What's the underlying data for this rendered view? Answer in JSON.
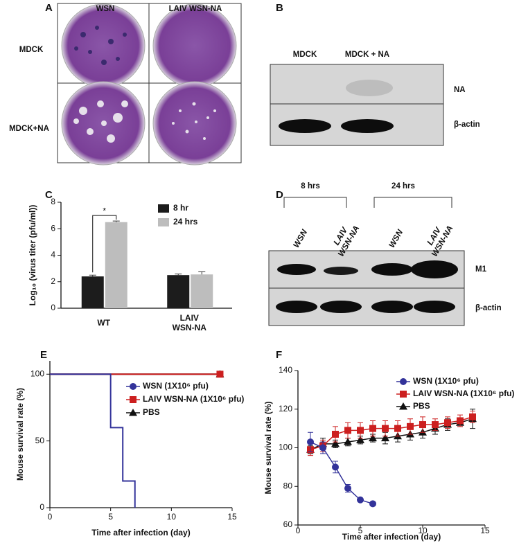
{
  "panel_labels": [
    "A",
    "B",
    "C",
    "D",
    "E",
    "F"
  ],
  "panel_a": {
    "columns": [
      "WSN",
      "LAIV WSN-NA"
    ],
    "rows": [
      "MDCK",
      "MDCK+NA"
    ]
  },
  "panel_b": {
    "lanes": [
      "MDCK",
      "MDCK + NA"
    ],
    "bands": [
      "NA",
      "β-actin"
    ]
  },
  "panel_d": {
    "groups": [
      "8 hrs",
      "24 hrs"
    ],
    "lanes": [
      "WSN",
      "LAIV WSN-NA",
      "WSN",
      "LAIV WSN-NA"
    ],
    "bands": [
      "M1",
      "β-actin"
    ]
  },
  "chart_data": [
    {
      "type": "bar",
      "ylabel": "Log₁₀ (virus titer (pfu/ml))",
      "categories": [
        "WT",
        "LAIV WSN-NA"
      ],
      "series": [
        {
          "name": "8 hr",
          "color": "#1c1c1c",
          "values": [
            2.4,
            2.5
          ],
          "errors": [
            0.1,
            0.08
          ]
        },
        {
          "name": "24 hrs",
          "color": "#bdbdbd",
          "values": [
            6.5,
            2.55
          ],
          "errors": [
            0.08,
            0.2
          ]
        }
      ],
      "ylim": [
        0,
        8
      ],
      "yticks": [
        0,
        2,
        4,
        6,
        8
      ],
      "annotations": [
        "*"
      ]
    },
    {
      "type": "step",
      "xlabel": "Time after infection (day)",
      "ylabel": "Mouse survival rate (%)",
      "series": [
        {
          "name": "WSN (1X10⁶ pfu)",
          "color": "#33339a",
          "marker": "circle",
          "x": [
            0,
            5,
            6,
            7
          ],
          "values": [
            100,
            60,
            20,
            0
          ]
        },
        {
          "name": "LAIV WSN-NA (1X10⁶ pfu)",
          "color": "#cc1f1f",
          "marker": "square",
          "x": [
            0,
            14
          ],
          "values": [
            100,
            100
          ]
        },
        {
          "name": "PBS",
          "color": "#111111",
          "marker": "triangle",
          "x": [
            0,
            14
          ],
          "values": [
            100,
            100
          ]
        }
      ],
      "xlim": [
        0,
        15
      ],
      "xticks": [
        0,
        5,
        10,
        15
      ],
      "ylim": [
        0,
        110
      ],
      "yticks": [
        0,
        50,
        100
      ]
    },
    {
      "type": "line",
      "xlabel": "Time after infection (day)",
      "ylabel": "Mouse survival rate (%)",
      "series": [
        {
          "name": "WSN (1X10⁶ pfu)",
          "color": "#33339a",
          "marker": "circle",
          "x": [
            1,
            2,
            3,
            4,
            5,
            6
          ],
          "values": [
            103,
            100,
            90,
            79,
            73,
            71
          ],
          "errors": [
            5,
            3,
            3,
            2,
            1,
            1
          ]
        },
        {
          "name": "LAIV WSN-NA (1X10⁶ pfu)",
          "color": "#cc1f1f",
          "marker": "square",
          "x": [
            1,
            2,
            3,
            4,
            5,
            6,
            7,
            8,
            9,
            10,
            11,
            12,
            13,
            14
          ],
          "values": [
            99,
            101,
            107,
            109,
            109,
            110,
            110,
            110,
            111,
            112,
            112,
            113,
            114,
            116
          ],
          "errors": [
            3,
            3,
            4,
            4,
            4,
            4,
            4,
            4,
            4,
            4,
            3,
            3,
            3,
            3
          ]
        },
        {
          "name": "PBS",
          "color": "#111111",
          "marker": "triangle",
          "x": [
            1,
            2,
            3,
            4,
            5,
            6,
            7,
            8,
            9,
            10,
            11,
            12,
            13,
            14
          ],
          "values": [
            99,
            102,
            102,
            103,
            104,
            105,
            105,
            106,
            107,
            108,
            110,
            112,
            113,
            115
          ],
          "errors": [
            2,
            3,
            2,
            2,
            2,
            2,
            3,
            3,
            3,
            3,
            3,
            3,
            2,
            5
          ]
        }
      ],
      "xlim": [
        0,
        15
      ],
      "xticks": [
        0,
        5,
        10,
        15
      ],
      "ylim": [
        60,
        140
      ],
      "yticks": [
        60,
        80,
        100,
        120,
        140
      ]
    }
  ]
}
